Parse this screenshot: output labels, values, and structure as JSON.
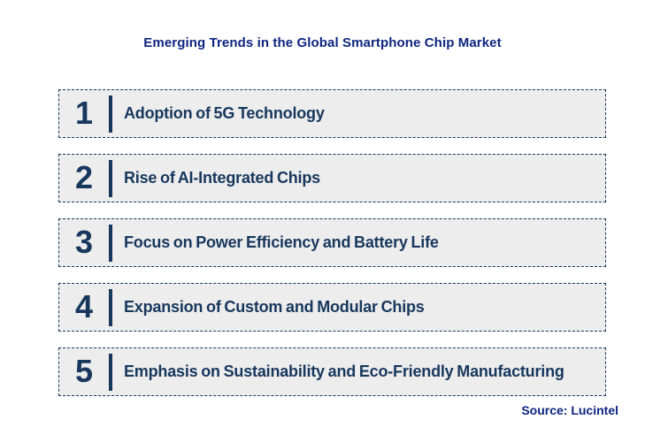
{
  "title": "Emerging Trends in the Global Smartphone Chip Market",
  "source": "Source: Lucintel",
  "trends": [
    {
      "number": "1",
      "label": "Adoption of 5G Technology"
    },
    {
      "number": "2",
      "label": "Rise of AI-Integrated Chips"
    },
    {
      "number": "3",
      "label": "Focus on Power Efficiency and Battery Life"
    },
    {
      "number": "4",
      "label": "Expansion of Custom and Modular Chips"
    },
    {
      "number": "5",
      "label": "Emphasis on Sustainability and Eco-Friendly Manufacturing"
    }
  ],
  "colors": {
    "title_text": "#0d2580",
    "item_text": "#17375d",
    "box_background": "#ededed",
    "box_border": "#17375d",
    "source_text": "#0d2580",
    "page_background": "#ffffff"
  }
}
